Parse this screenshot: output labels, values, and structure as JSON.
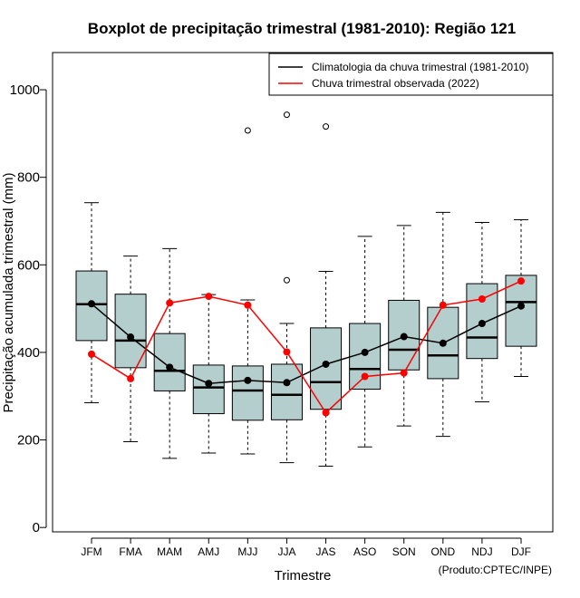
{
  "chart_data": {
    "type": "boxplot",
    "title": "Boxplot de precipitação trimestral (1981-2010): Região 121",
    "xlabel": "Trimestre",
    "ylabel": "Precipitação acumulada trimestral (mm)",
    "credit": "(Produto:CPTEC/INPE)",
    "ylim": [
      -10,
      1085
    ],
    "yticks": [
      0,
      200,
      400,
      600,
      800,
      1000
    ],
    "categories": [
      "JFM",
      "FMA",
      "MAM",
      "AMJ",
      "MJJ",
      "JJA",
      "JAS",
      "ASO",
      "SON",
      "OND",
      "NDJ",
      "DJF"
    ],
    "boxes": [
      {
        "min": 285,
        "q1": 427,
        "median": 510,
        "q3": 586,
        "max": 742,
        "outliers": []
      },
      {
        "min": 196,
        "q1": 365,
        "median": 427,
        "q3": 533,
        "max": 620,
        "outliers": []
      },
      {
        "min": 158,
        "q1": 312,
        "median": 358,
        "q3": 443,
        "max": 637,
        "outliers": []
      },
      {
        "min": 170,
        "q1": 260,
        "median": 320,
        "q3": 371,
        "max": 532,
        "outliers": []
      },
      {
        "min": 168,
        "q1": 245,
        "median": 313,
        "q3": 369,
        "max": 520,
        "outliers": [
          907
        ]
      },
      {
        "min": 148,
        "q1": 246,
        "median": 303,
        "q3": 373,
        "max": 466,
        "outliers": [
          943,
          565
        ]
      },
      {
        "min": 140,
        "q1": 270,
        "median": 332,
        "q3": 456,
        "max": 585,
        "outliers": [
          916
        ]
      },
      {
        "min": 184,
        "q1": 316,
        "median": 362,
        "q3": 466,
        "max": 665,
        "outliers": []
      },
      {
        "min": 232,
        "q1": 360,
        "median": 406,
        "q3": 519,
        "max": 690,
        "outliers": []
      },
      {
        "min": 208,
        "q1": 340,
        "median": 393,
        "q3": 503,
        "max": 720,
        "outliers": []
      },
      {
        "min": 287,
        "q1": 386,
        "median": 434,
        "q3": 557,
        "max": 697,
        "outliers": []
      },
      {
        "min": 345,
        "q1": 414,
        "median": 515,
        "q3": 576,
        "max": 703,
        "outliers": []
      }
    ],
    "series": [
      {
        "name": "Climatologia da chuva trimestral (1981-2010)",
        "color": "#000000",
        "values": [
          511,
          435,
          366,
          329,
          336,
          331,
          373,
          400,
          436,
          421,
          466,
          506
        ]
      },
      {
        "name": "Chuva trimestral observada (2022)",
        "color": "#ff0000",
        "values": [
          396,
          340,
          513,
          528,
          508,
          401,
          262,
          345,
          353,
          508,
          522,
          563
        ]
      }
    ],
    "box_fill": "#b4cdcd",
    "legend_position": "top-right"
  }
}
